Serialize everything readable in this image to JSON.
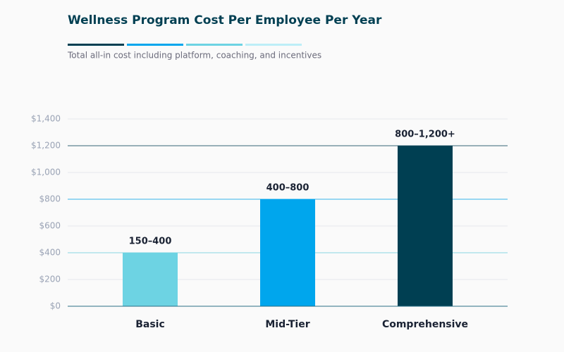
{
  "chart_data": {
    "type": "bar",
    "title": "Wellness Program Cost Per Employee Per Year",
    "subtitle": "Total all-in cost including platform, coaching, and incentives",
    "categories": [
      "Basic",
      "Mid-Tier",
      "Comprehensive"
    ],
    "values": [
      400,
      800,
      1200
    ],
    "value_labels": [
      "150–400",
      "400–800",
      "800–1,200+"
    ],
    "colors": [
      "#6dd3e3",
      "#00a6ed",
      "#003f52"
    ],
    "ylim": [
      0,
      1400
    ],
    "yticks": [
      {
        "value": 0,
        "label": "$0"
      },
      {
        "value": 200,
        "label": "$200"
      },
      {
        "value": 400,
        "label": "$400"
      },
      {
        "value": 600,
        "label": "$600"
      },
      {
        "value": 800,
        "label": "$800"
      },
      {
        "value": 1000,
        "label": "$1,000"
      },
      {
        "value": 1200,
        "label": "$1,200"
      },
      {
        "value": 1400,
        "label": "$1,400"
      }
    ],
    "grid": true
  }
}
